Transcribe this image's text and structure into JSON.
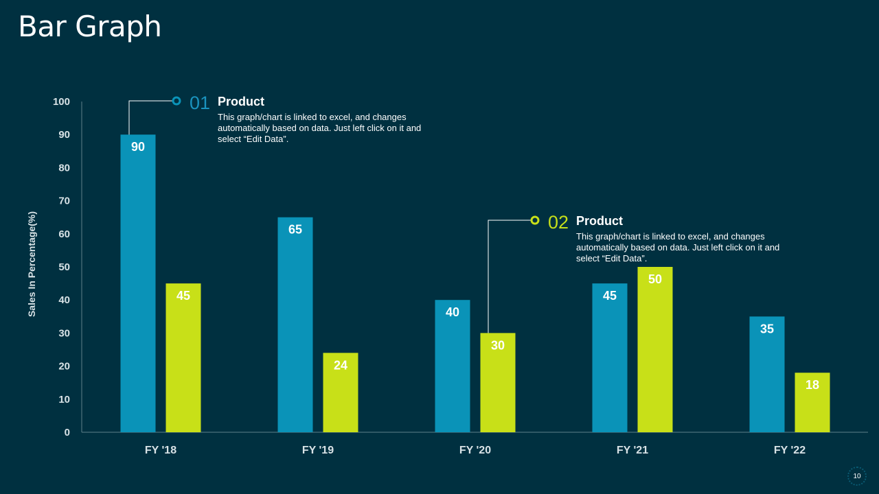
{
  "page": {
    "title": "Bar Graph",
    "page_number": "10"
  },
  "colors": {
    "background": "#003040",
    "series1": "#0a93b8",
    "series2": "#c8e018",
    "axis": "#5f7f8a",
    "label_text": "#ffffff",
    "tick_text": "#d8e2e6"
  },
  "callouts": [
    {
      "number": "01",
      "heading": "Product",
      "description": "This graph/chart is linked to excel, and changes automatically based on data. Just left click on it and select “Edit Data”."
    },
    {
      "number": "02",
      "heading": "Product",
      "description": "This graph/chart is linked to excel, and changes automatically based on data. Just left click on it and select “Edit Data”."
    }
  ],
  "chart_data": {
    "type": "bar",
    "title": "",
    "xlabel": "",
    "ylabel": "Sales In Percentage(%)",
    "ylim": [
      0,
      100
    ],
    "yticks": [
      0,
      10,
      20,
      30,
      40,
      50,
      60,
      70,
      80,
      90,
      100
    ],
    "categories": [
      "FY'18",
      "FY'19",
      "FY'20",
      "FY'21",
      "FY'22"
    ],
    "category_labels": [
      "FY '18",
      "FY '19",
      "FY '20",
      "FY '21",
      "FY '22"
    ],
    "series": [
      {
        "name": "Product 01",
        "values": [
          90,
          65,
          40,
          45,
          35
        ]
      },
      {
        "name": "Product 02",
        "values": [
          45,
          24,
          30,
          50,
          18
        ]
      }
    ],
    "grid": false,
    "data_labels": true
  }
}
